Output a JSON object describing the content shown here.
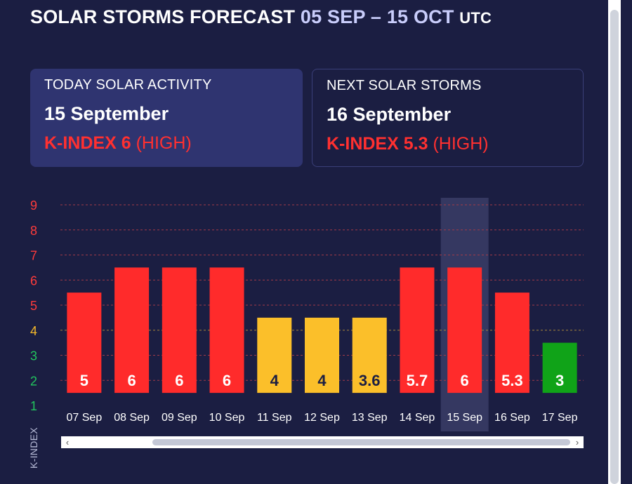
{
  "header": {
    "title": "SOLAR STORMS FORECAST",
    "range": "05 SEP – 15 OCT",
    "tz": "UTC"
  },
  "today": {
    "label": "TODAY SOLAR ACTIVITY",
    "date": "15 September",
    "k_label": "K-INDEX 6",
    "level": "(HIGH)"
  },
  "next": {
    "label": "NEXT SOLAR STORMS",
    "date": "16 September",
    "k_label": "K-INDEX 5.3",
    "level": "(HIGH)"
  },
  "colors": {
    "high": "#ff2b2b",
    "moderate": "#fbbf2a",
    "low": "#10a318",
    "highlight": "#3a3d66"
  },
  "chart_data": {
    "type": "bar",
    "ylabel": "K-INDEX",
    "ylim": [
      1,
      9
    ],
    "yticks": [
      1,
      2,
      3,
      4,
      5,
      6,
      7,
      8,
      9
    ],
    "categories": [
      "07 Sep",
      "08 Sep",
      "09 Sep",
      "10 Sep",
      "11 Sep",
      "12 Sep",
      "13 Sep",
      "14 Sep",
      "15 Sep",
      "16 Sep",
      "17 Sep"
    ],
    "values": [
      5,
      6,
      6,
      6,
      4,
      4,
      3.6,
      5.7,
      6,
      5.3,
      3
    ],
    "bar_tops": [
      5.5,
      6.5,
      6.5,
      6.5,
      4.5,
      4.5,
      4.5,
      6.5,
      6.5,
      5.5,
      3.5
    ],
    "levels": [
      "high",
      "high",
      "high",
      "high",
      "moderate",
      "moderate",
      "moderate",
      "high",
      "high",
      "high",
      "low"
    ],
    "highlighted": "15 Sep",
    "grid": true
  },
  "icons": {
    "scroll_left": "‹",
    "scroll_right": "›"
  }
}
